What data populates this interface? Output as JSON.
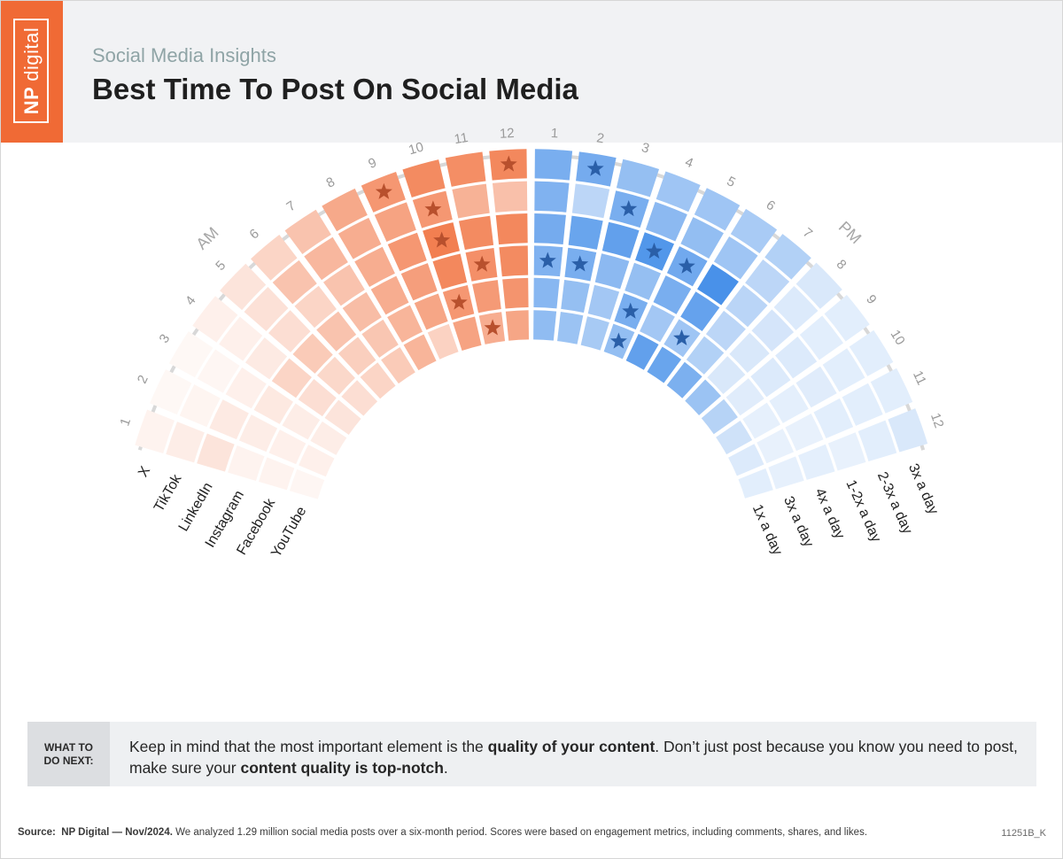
{
  "header": {
    "logo_np": "NP",
    "logo_word": "digital",
    "subtitle": "Social Media Insights",
    "title": "Best Time To Post On Social Media"
  },
  "chart_data": {
    "type": "heatmap",
    "period_labels": {
      "am": "AM",
      "pm": "PM"
    },
    "hours": [
      "1",
      "2",
      "3",
      "4",
      "5",
      "6",
      "7",
      "8",
      "9",
      "10",
      "11",
      "12"
    ],
    "platforms": [
      {
        "name": "X",
        "frequency": "3x a day"
      },
      {
        "name": "TikTok",
        "frequency": "2-3x a day"
      },
      {
        "name": "LinkedIn",
        "frequency": "1-2x a day"
      },
      {
        "name": "Instagram",
        "frequency": "4x a day"
      },
      {
        "name": "Facebook",
        "frequency": "3x a day"
      },
      {
        "name": "YouTube",
        "frequency": "1x a day"
      }
    ],
    "am_intensity": [
      [
        0.08,
        0.05,
        0.05,
        0.1,
        0.18,
        0.28,
        0.4,
        0.58,
        0.7,
        0.78,
        0.76,
        0.8
      ],
      [
        0.12,
        0.07,
        0.06,
        0.1,
        0.2,
        0.4,
        0.48,
        0.55,
        0.62,
        0.7,
        0.52,
        0.42
      ],
      [
        0.18,
        0.14,
        0.1,
        0.14,
        0.22,
        0.28,
        0.4,
        0.55,
        0.7,
        0.86,
        0.78,
        0.8
      ],
      [
        0.08,
        0.12,
        0.15,
        0.28,
        0.35,
        0.4,
        0.44,
        0.55,
        0.65,
        0.8,
        0.75,
        0.78
      ],
      [
        0.08,
        0.1,
        0.12,
        0.22,
        0.26,
        0.32,
        0.38,
        0.5,
        0.6,
        0.7,
        0.68,
        0.72
      ],
      [
        0.06,
        0.1,
        0.12,
        0.18,
        0.22,
        0.28,
        0.35,
        0.5,
        0.3,
        0.62,
        0.55,
        0.6
      ]
    ],
    "pm_intensity": [
      [
        0.7,
        0.72,
        0.55,
        0.5,
        0.5,
        0.45,
        0.4,
        0.2,
        0.15,
        0.15,
        0.15,
        0.2
      ],
      [
        0.66,
        0.35,
        0.7,
        0.6,
        0.56,
        0.5,
        0.35,
        0.18,
        0.15,
        0.15,
        0.15,
        0.15
      ],
      [
        0.72,
        0.78,
        0.82,
        0.9,
        0.74,
        0.95,
        0.36,
        0.22,
        0.18,
        0.16,
        0.15,
        0.12
      ],
      [
        0.66,
        0.7,
        0.6,
        0.55,
        0.7,
        0.8,
        0.35,
        0.2,
        0.18,
        0.14,
        0.12,
        0.14
      ],
      [
        0.62,
        0.55,
        0.48,
        0.7,
        0.48,
        0.5,
        0.4,
        0.2,
        0.16,
        0.13,
        0.12,
        0.13
      ],
      [
        0.58,
        0.52,
        0.46,
        0.56,
        0.82,
        0.78,
        0.68,
        0.52,
        0.38,
        0.25,
        0.18,
        0.15
      ]
    ],
    "am_stars": [
      [
        0,
        12
      ],
      [
        1,
        10
      ],
      [
        2,
        10
      ],
      [
        3,
        11
      ],
      [
        4,
        10
      ],
      [
        5,
        11
      ],
      [
        0,
        9
      ]
    ],
    "pm_stars": [
      [
        0,
        2
      ],
      [
        1,
        3
      ],
      [
        2,
        4
      ],
      [
        2,
        5
      ],
      [
        3,
        2
      ],
      [
        3,
        1
      ],
      [
        4,
        4
      ],
      [
        5,
        4
      ],
      [
        4,
        6
      ]
    ],
    "colors": {
      "am": "#f06a35",
      "pm": "#3f8be8",
      "star_am": "#b8502d",
      "star_pm": "#2a5fa8",
      "label": "#9a9a9a",
      "arc": "#d8d8d8"
    }
  },
  "callout": {
    "tag_line1": "WHAT TO",
    "tag_line2": "DO NEXT:",
    "text_1": "Keep in mind that the most important element is the ",
    "text_bold_1": "quality of your content",
    "text_2": ". Don’t just post because you know you need to post, make sure your ",
    "text_bold_2": "content quality is top-notch",
    "text_3": "."
  },
  "footer": {
    "source_label": "Source:",
    "source_name": "NP Digital — Nov/2024.",
    "source_text": " We analyzed 1.29 million social media posts over a six-month period. Scores were based on engagement metrics, including comments, shares, and likes.",
    "code": "11251B_K"
  }
}
